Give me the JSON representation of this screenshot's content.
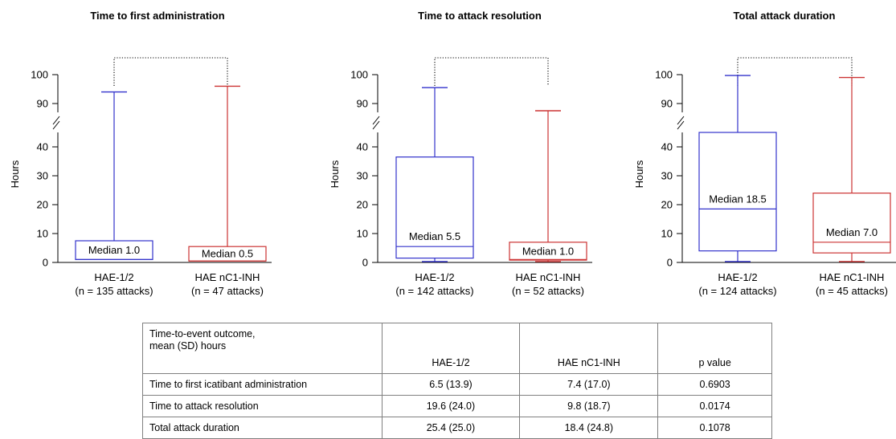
{
  "chart_data": [
    {
      "type": "boxplot",
      "title": "Time to first administration",
      "ylabel": "Hours",
      "yaxis_break": [
        45,
        85
      ],
      "yticks_lower": [
        0,
        10,
        20,
        30,
        40
      ],
      "yticks_upper": [
        90,
        100
      ],
      "categories": [
        "HAE-1/2",
        "HAE nC1-INH"
      ],
      "category_notes": [
        "(n = 135 attacks)",
        "(n = 47 attacks)"
      ],
      "series": [
        {
          "color": "#3333cc",
          "min": 1,
          "q1": 1,
          "median": 1.0,
          "q3": 7.5,
          "max": 94,
          "median_label": "Median 1.0"
        },
        {
          "color": "#cc3333",
          "min": 0.5,
          "q1": 0.5,
          "median": 0.5,
          "q3": 5.5,
          "max": 96,
          "median_label": "Median 0.5"
        }
      ],
      "bracket": true
    },
    {
      "type": "boxplot",
      "title": "Time to attack resolution",
      "ylabel": "Hours",
      "yaxis_break": [
        45,
        85
      ],
      "yticks_lower": [
        0,
        10,
        20,
        30,
        40
      ],
      "yticks_upper": [
        90,
        100
      ],
      "categories": [
        "HAE-1/2",
        "HAE nC1-INH"
      ],
      "category_notes": [
        "(n = 142 attacks)",
        "(n = 52 attacks)"
      ],
      "series": [
        {
          "color": "#3333cc",
          "min": 0.3,
          "q1": 1.5,
          "median": 5.5,
          "q3": 36.5,
          "max": 95.5,
          "median_label": "Median 5.5"
        },
        {
          "color": "#cc3333",
          "min": 0.3,
          "q1": 0.8,
          "median": 1.0,
          "q3": 7.0,
          "max": 87.5,
          "median_label": "Median 1.0"
        }
      ],
      "bracket": true
    },
    {
      "type": "boxplot",
      "title": "Total attack duration",
      "ylabel": "Hours",
      "yaxis_break": [
        45,
        85
      ],
      "yticks_lower": [
        0,
        10,
        20,
        30,
        40
      ],
      "yticks_upper": [
        90,
        100
      ],
      "categories": [
        "HAE-1/2",
        "HAE nC1-INH"
      ],
      "category_notes": [
        "(n = 124 attacks)",
        "(n = 45 attacks)"
      ],
      "series": [
        {
          "color": "#3333cc",
          "min": 0.3,
          "q1": 4.0,
          "median": 18.5,
          "q3": 47.5,
          "max": 99.7,
          "median_label": "Median 18.5"
        },
        {
          "color": "#cc3333",
          "min": 0.3,
          "q1": 3.3,
          "median": 7.0,
          "q3": 24.0,
          "max": 99.0,
          "median_label": "Median 7.0"
        }
      ],
      "bracket": true
    }
  ],
  "table": {
    "header": [
      "Time-to-event outcome,",
      "mean (SD) hours",
      "HAE-1/2",
      "HAE nC1-INH",
      "p value"
    ],
    "rows": [
      [
        "Time to first icatibant administration",
        "6.5 (13.9)",
        "7.4 (17.0)",
        "0.6903"
      ],
      [
        "Time to attack resolution",
        "19.6 (24.0)",
        "9.8 (18.7)",
        "0.0174"
      ],
      [
        "Total attack duration",
        "25.4 (25.0)",
        "18.4 (24.8)",
        "0.1078"
      ]
    ]
  }
}
